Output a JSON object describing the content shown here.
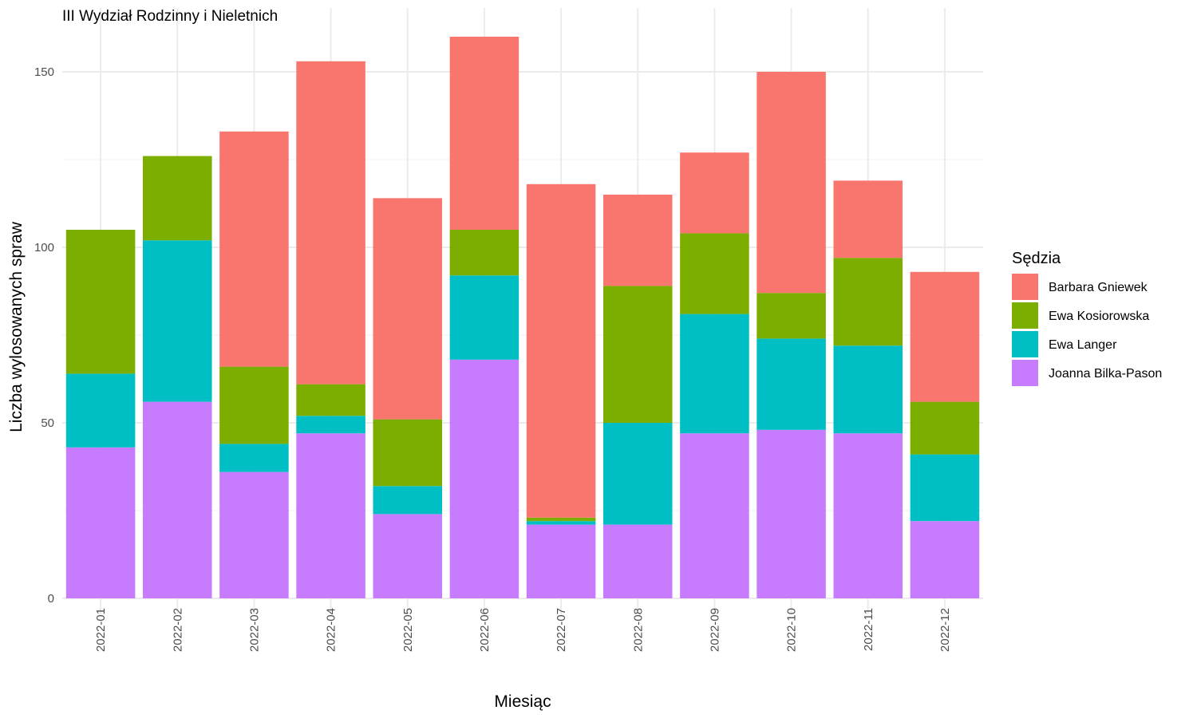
{
  "chart_data": {
    "type": "bar",
    "stacked": true,
    "title": "III Wydział Rodzinny i Nieletnich",
    "xlabel": "Miesiąc",
    "ylabel": "Liczba wylosowanych spraw",
    "ylim": [
      0,
      162
    ],
    "yticks": [
      0,
      50,
      100,
      150
    ],
    "grid": true,
    "legend_title": "Sędzia",
    "legend_position": "right",
    "categories": [
      "2022-01",
      "2022-02",
      "2022-03",
      "2022-04",
      "2022-05",
      "2022-06",
      "2022-07",
      "2022-08",
      "2022-09",
      "2022-10",
      "2022-11",
      "2022-12"
    ],
    "series": [
      {
        "name": "Joanna Bilka-Pason",
        "color": "#C77CFF",
        "values": [
          43,
          56,
          36,
          47,
          24,
          68,
          21,
          21,
          47,
          48,
          47,
          22
        ]
      },
      {
        "name": "Ewa Langer",
        "color": "#00BFC4",
        "values": [
          21,
          46,
          8,
          5,
          8,
          24,
          1,
          29,
          34,
          26,
          25,
          19
        ]
      },
      {
        "name": "Ewa Kosiorowska",
        "color": "#7CAE00",
        "values": [
          41,
          24,
          22,
          9,
          19,
          13,
          1,
          39,
          23,
          13,
          25,
          15
        ]
      },
      {
        "name": "Barbara Gniewek",
        "color": "#F8766D",
        "values": [
          0,
          0,
          67,
          92,
          63,
          55,
          95,
          26,
          23,
          63,
          22,
          37
        ]
      }
    ],
    "legend_order": [
      "Barbara Gniewek",
      "Ewa Kosiorowska",
      "Ewa Langer",
      "Joanna Bilka-Pason"
    ]
  }
}
